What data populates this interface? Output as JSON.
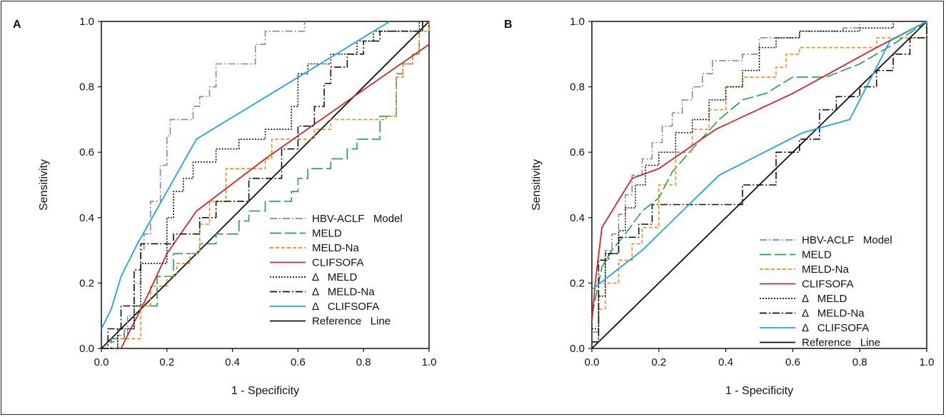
{
  "chart_data": [
    {
      "type": "line",
      "panel_label": "A",
      "xlabel": "1 - Specificity",
      "ylabel": "Sensitivity",
      "xlim": [
        0,
        1
      ],
      "ylim": [
        0,
        1
      ],
      "xticks": [
        "0.0",
        "0.2",
        "0.4",
        "0.6",
        "0.8",
        "1.0"
      ],
      "yticks": [
        "0.0",
        "0.2",
        "0.4",
        "0.6",
        "0.8",
        "1.0"
      ],
      "grid": false,
      "legend_position": "lower-right",
      "series": [
        {
          "name": "HBV-ACLF   Model",
          "color": "#8a7fc4",
          "dash": "dashdot",
          "step": true,
          "points": [
            [
              0,
              0
            ],
            [
              0.02,
              0.02
            ],
            [
              0.05,
              0.04
            ],
            [
              0.08,
              0.1
            ],
            [
              0.1,
              0.2
            ],
            [
              0.12,
              0.3
            ],
            [
              0.13,
              0.35
            ],
            [
              0.15,
              0.45
            ],
            [
              0.18,
              0.56
            ],
            [
              0.2,
              0.65
            ],
            [
              0.21,
              0.7
            ],
            [
              0.26,
              0.7
            ],
            [
              0.28,
              0.74
            ],
            [
              0.3,
              0.77
            ],
            [
              0.33,
              0.8
            ],
            [
              0.35,
              0.87
            ],
            [
              0.45,
              0.87
            ],
            [
              0.47,
              0.93
            ],
            [
              0.5,
              0.97
            ],
            [
              0.62,
              0.97
            ],
            [
              0.62,
              1.0
            ]
          ]
        },
        {
          "name": "MELD",
          "color": "#22a050",
          "dash": "longdash",
          "step": true,
          "points": [
            [
              0,
              0
            ],
            [
              0.03,
              0.03
            ],
            [
              0.07,
              0.06
            ],
            [
              0.1,
              0.13
            ],
            [
              0.17,
              0.22
            ],
            [
              0.22,
              0.29
            ],
            [
              0.3,
              0.32
            ],
            [
              0.35,
              0.35
            ],
            [
              0.42,
              0.39
            ],
            [
              0.45,
              0.42
            ],
            [
              0.5,
              0.45
            ],
            [
              0.58,
              0.48
            ],
            [
              0.6,
              0.52
            ],
            [
              0.63,
              0.55
            ],
            [
              0.7,
              0.58
            ],
            [
              0.75,
              0.61
            ],
            [
              0.78,
              0.64
            ],
            [
              0.82,
              0.64
            ],
            [
              0.85,
              0.71
            ],
            [
              0.9,
              0.84
            ],
            [
              0.92,
              0.87
            ],
            [
              0.95,
              0.9
            ],
            [
              0.97,
              0.97
            ],
            [
              0.98,
              1.0
            ]
          ]
        },
        {
          "name": "MELD-Na",
          "color": "#f08a20",
          "dash": "shortdash",
          "step": true,
          "points": [
            [
              0,
              0
            ],
            [
              0.05,
              0.03
            ],
            [
              0.12,
              0.13
            ],
            [
              0.15,
              0.19
            ],
            [
              0.2,
              0.22
            ],
            [
              0.23,
              0.26
            ],
            [
              0.27,
              0.29
            ],
            [
              0.3,
              0.38
            ],
            [
              0.33,
              0.45
            ],
            [
              0.38,
              0.55
            ],
            [
              0.45,
              0.55
            ],
            [
              0.5,
              0.58
            ],
            [
              0.52,
              0.64
            ],
            [
              0.6,
              0.64
            ],
            [
              0.65,
              0.67
            ],
            [
              0.7,
              0.7
            ],
            [
              0.87,
              0.71
            ],
            [
              0.9,
              0.83
            ],
            [
              0.92,
              0.87
            ],
            [
              0.95,
              0.9
            ],
            [
              0.97,
              0.97
            ],
            [
              1.0,
              1.0
            ]
          ]
        },
        {
          "name": "CLIFSOFA",
          "color": "#d9232d",
          "dash": "solid",
          "step": false,
          "points": [
            [
              0.06,
              0.0
            ],
            [
              0.09,
              0.06
            ],
            [
              0.14,
              0.16
            ],
            [
              0.2,
              0.29
            ],
            [
              0.29,
              0.42
            ],
            [
              0.5,
              0.58
            ],
            [
              0.77,
              0.77
            ],
            [
              1.0,
              0.93
            ]
          ]
        },
        {
          "name": "Δ   MELD",
          "color": "#111111",
          "dash": "dotted",
          "step": true,
          "points": [
            [
              0,
              0
            ],
            [
              0.05,
              0.06
            ],
            [
              0.1,
              0.13
            ],
            [
              0.12,
              0.26
            ],
            [
              0.2,
              0.4
            ],
            [
              0.22,
              0.48
            ],
            [
              0.25,
              0.52
            ],
            [
              0.28,
              0.57
            ],
            [
              0.35,
              0.61
            ],
            [
              0.42,
              0.64
            ],
            [
              0.5,
              0.67
            ],
            [
              0.58,
              0.74
            ],
            [
              0.6,
              0.84
            ],
            [
              0.63,
              0.87
            ],
            [
              0.7,
              0.9
            ],
            [
              0.78,
              0.94
            ],
            [
              0.83,
              0.97
            ],
            [
              0.9,
              0.97
            ],
            [
              0.95,
              0.97
            ],
            [
              0.97,
              1.0
            ]
          ]
        },
        {
          "name": "Δ   MELD-Na",
          "color": "#111111",
          "dash": "dashdot",
          "step": true,
          "points": [
            [
              0,
              0
            ],
            [
              0.02,
              0.06
            ],
            [
              0.06,
              0.13
            ],
            [
              0.1,
              0.24
            ],
            [
              0.12,
              0.32
            ],
            [
              0.22,
              0.35
            ],
            [
              0.3,
              0.4
            ],
            [
              0.35,
              0.45
            ],
            [
              0.45,
              0.52
            ],
            [
              0.55,
              0.61
            ],
            [
              0.6,
              0.68
            ],
            [
              0.65,
              0.74
            ],
            [
              0.68,
              0.81
            ],
            [
              0.7,
              0.86
            ],
            [
              0.75,
              0.9
            ],
            [
              0.8,
              0.94
            ],
            [
              0.85,
              0.97
            ],
            [
              0.97,
              0.97
            ],
            [
              0.98,
              1.0
            ]
          ]
        },
        {
          "name": "Δ   CLIFSOFA",
          "color": "#1aa7e0",
          "dash": "solid",
          "step": false,
          "points": [
            [
              0,
              0.06
            ],
            [
              0.03,
              0.12
            ],
            [
              0.06,
              0.22
            ],
            [
              0.11,
              0.32
            ],
            [
              0.29,
              0.64
            ],
            [
              0.88,
              1.0
            ]
          ]
        },
        {
          "name": "Reference   Line",
          "color": "#111111",
          "dash": "solid",
          "step": false,
          "points": [
            [
              0,
              0
            ],
            [
              1,
              1
            ]
          ]
        }
      ]
    },
    {
      "type": "line",
      "panel_label": "B",
      "xlabel": "1 - Specificity",
      "ylabel": "Sensitivity",
      "xlim": [
        0,
        1
      ],
      "ylim": [
        0,
        1
      ],
      "xticks": [
        "0.0",
        "0.2",
        "0.4",
        "0.6",
        "0.8",
        "1.0"
      ],
      "yticks": [
        "0.0",
        "0.2",
        "0.4",
        "0.6",
        "0.8",
        "1.0"
      ],
      "grid": false,
      "legend_position": "lower-right",
      "series": [
        {
          "name": "HBV-ACLF   Model",
          "color": "#8a7fc4",
          "dash": "dashdot",
          "step": true,
          "points": [
            [
              0,
              0.05
            ],
            [
              0.02,
              0.2
            ],
            [
              0.04,
              0.3
            ],
            [
              0.06,
              0.35
            ],
            [
              0.08,
              0.41
            ],
            [
              0.1,
              0.47
            ],
            [
              0.12,
              0.53
            ],
            [
              0.15,
              0.58
            ],
            [
              0.18,
              0.63
            ],
            [
              0.21,
              0.68
            ],
            [
              0.24,
              0.72
            ],
            [
              0.27,
              0.76
            ],
            [
              0.3,
              0.8
            ],
            [
              0.33,
              0.84
            ],
            [
              0.36,
              0.88
            ],
            [
              0.45,
              0.9
            ],
            [
              0.5,
              0.95
            ],
            [
              0.6,
              0.95
            ],
            [
              0.62,
              0.97
            ],
            [
              0.75,
              0.98
            ],
            [
              0.8,
              1.0
            ]
          ]
        },
        {
          "name": "MELD",
          "color": "#22a050",
          "dash": "longdash",
          "step": false,
          "points": [
            [
              0,
              0.1
            ],
            [
              0.03,
              0.25
            ],
            [
              0.06,
              0.3
            ],
            [
              0.1,
              0.35
            ],
            [
              0.15,
              0.42
            ],
            [
              0.2,
              0.46
            ],
            [
              0.24,
              0.54
            ],
            [
              0.3,
              0.61
            ],
            [
              0.38,
              0.7
            ],
            [
              0.45,
              0.76
            ],
            [
              0.52,
              0.78
            ],
            [
              0.6,
              0.83
            ],
            [
              0.7,
              0.83
            ],
            [
              0.8,
              0.87
            ],
            [
              0.9,
              0.93
            ],
            [
              1.0,
              1.0
            ]
          ]
        },
        {
          "name": "MELD-Na",
          "color": "#f08a20",
          "dash": "shortdash",
          "step": true,
          "points": [
            [
              0,
              0.02
            ],
            [
              0.02,
              0.12
            ],
            [
              0.04,
              0.2
            ],
            [
              0.08,
              0.27
            ],
            [
              0.12,
              0.32
            ],
            [
              0.15,
              0.37
            ],
            [
              0.2,
              0.5
            ],
            [
              0.25,
              0.6
            ],
            [
              0.3,
              0.67
            ],
            [
              0.35,
              0.73
            ],
            [
              0.4,
              0.8
            ],
            [
              0.45,
              0.83
            ],
            [
              0.55,
              0.86
            ],
            [
              0.58,
              0.9
            ],
            [
              0.62,
              0.92
            ],
            [
              0.8,
              0.92
            ],
            [
              0.85,
              0.95
            ],
            [
              1.0,
              1.0
            ]
          ]
        },
        {
          "name": "CLIFSOFA",
          "color": "#d9232d",
          "dash": "solid",
          "step": false,
          "points": [
            [
              0,
              0.08
            ],
            [
              0.01,
              0.2
            ],
            [
              0.03,
              0.37
            ],
            [
              0.12,
              0.52
            ],
            [
              0.2,
              0.55
            ],
            [
              0.37,
              0.67
            ],
            [
              0.6,
              0.78
            ],
            [
              0.85,
              0.92
            ],
            [
              1.0,
              1.0
            ]
          ]
        },
        {
          "name": "Δ   MELD",
          "color": "#111111",
          "dash": "dotted",
          "step": true,
          "points": [
            [
              0,
              0.06
            ],
            [
              0.02,
              0.16
            ],
            [
              0.04,
              0.29
            ],
            [
              0.08,
              0.36
            ],
            [
              0.1,
              0.43
            ],
            [
              0.13,
              0.5
            ],
            [
              0.16,
              0.56
            ],
            [
              0.2,
              0.6
            ],
            [
              0.25,
              0.66
            ],
            [
              0.3,
              0.7
            ],
            [
              0.35,
              0.76
            ],
            [
              0.4,
              0.8
            ],
            [
              0.45,
              0.85
            ],
            [
              0.5,
              0.92
            ],
            [
              0.55,
              0.95
            ],
            [
              0.62,
              0.97
            ],
            [
              0.8,
              0.98
            ],
            [
              0.9,
              1.0
            ]
          ]
        },
        {
          "name": "Δ   MELD-Na",
          "color": "#111111",
          "dash": "dashdot",
          "step": true,
          "points": [
            [
              0,
              0.02
            ],
            [
              0.02,
              0.27
            ],
            [
              0.05,
              0.29
            ],
            [
              0.08,
              0.34
            ],
            [
              0.14,
              0.38
            ],
            [
              0.18,
              0.44
            ],
            [
              0.37,
              0.44
            ],
            [
              0.45,
              0.5
            ],
            [
              0.55,
              0.6
            ],
            [
              0.62,
              0.64
            ],
            [
              0.68,
              0.73
            ],
            [
              0.73,
              0.77
            ],
            [
              0.8,
              0.8
            ],
            [
              0.85,
              0.85
            ],
            [
              0.9,
              0.9
            ],
            [
              0.95,
              0.95
            ],
            [
              1.0,
              1.0
            ]
          ]
        },
        {
          "name": "Δ   CLIFSOFA",
          "color": "#1aa7e0",
          "dash": "solid",
          "step": false,
          "points": [
            [
              0,
              0.18
            ],
            [
              0.05,
              0.22
            ],
            [
              0.15,
              0.3
            ],
            [
              0.38,
              0.53
            ],
            [
              0.63,
              0.66
            ],
            [
              0.77,
              0.7
            ],
            [
              0.89,
              0.94
            ],
            [
              1.0,
              1.0
            ]
          ]
        },
        {
          "name": "Reference   Line",
          "color": "#111111",
          "dash": "solid",
          "step": false,
          "points": [
            [
              0,
              0
            ],
            [
              1,
              1
            ]
          ]
        }
      ]
    }
  ]
}
